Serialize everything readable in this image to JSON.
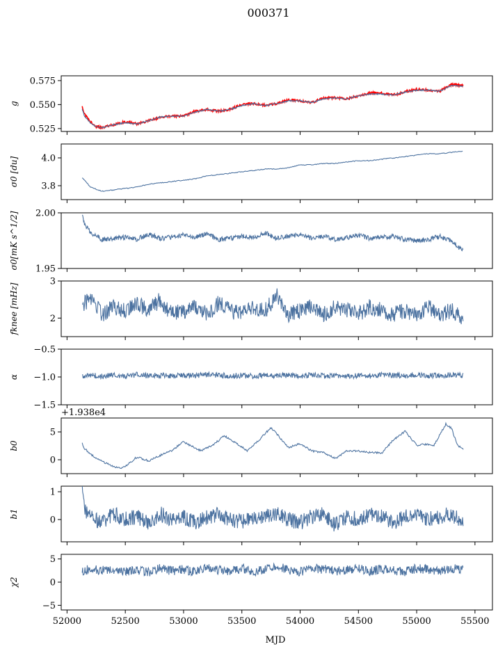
{
  "figure": {
    "title": "000371"
  },
  "chart_data": [
    {
      "type": "line",
      "ylabel": "g",
      "ylim": [
        0.522,
        0.58
      ],
      "yticks": [
        0.525,
        0.55,
        0.575
      ],
      "ytick_labels": [
        "0.525",
        "0.550",
        "0.575"
      ],
      "xlim": [
        51950,
        55650
      ],
      "grid": false,
      "series": [
        {
          "color": "#ff0000",
          "x": [
            52130,
            52150,
            52200,
            52250,
            52300,
            52400,
            52500,
            52600,
            52700,
            52800,
            52900,
            53000,
            53100,
            53200,
            53300,
            53400,
            53500,
            53600,
            53700,
            53800,
            53900,
            54000,
            54100,
            54200,
            54300,
            54400,
            54500,
            54600,
            54700,
            54800,
            54900,
            55000,
            55100,
            55200,
            55300,
            55400
          ],
          "y": [
            0.548,
            0.54,
            0.532,
            0.527,
            0.526,
            0.529,
            0.532,
            0.53,
            0.533,
            0.537,
            0.538,
            0.538,
            0.543,
            0.545,
            0.543,
            0.545,
            0.55,
            0.551,
            0.549,
            0.551,
            0.555,
            0.554,
            0.552,
            0.557,
            0.557,
            0.556,
            0.559,
            0.562,
            0.562,
            0.56,
            0.563,
            0.566,
            0.565,
            0.564,
            0.571,
            0.57
          ]
        },
        {
          "color": "#4c72a0",
          "x": [
            52130,
            52150,
            52200,
            52250,
            52300,
            52400,
            52500,
            52600,
            52700,
            52800,
            52900,
            53000,
            53100,
            53200,
            53300,
            53400,
            53500,
            53600,
            53700,
            53800,
            53900,
            54000,
            54100,
            54200,
            54300,
            54400,
            54500,
            54600,
            54700,
            54800,
            54900,
            55000,
            55100,
            55200,
            55300,
            55400
          ],
          "y": [
            0.545,
            0.538,
            0.531,
            0.527,
            0.526,
            0.529,
            0.531,
            0.53,
            0.533,
            0.537,
            0.538,
            0.538,
            0.542,
            0.545,
            0.543,
            0.545,
            0.549,
            0.551,
            0.549,
            0.551,
            0.554,
            0.554,
            0.552,
            0.556,
            0.557,
            0.556,
            0.559,
            0.561,
            0.561,
            0.56,
            0.563,
            0.565,
            0.565,
            0.564,
            0.57,
            0.569
          ]
        }
      ]
    },
    {
      "type": "line",
      "ylabel": "σ0 [du]",
      "ylim": [
        3.7,
        4.1
      ],
      "yticks": [
        3.8,
        4.0
      ],
      "ytick_labels": [
        "3.8",
        "4.0"
      ],
      "xlim": [
        51950,
        55650
      ],
      "grid": false,
      "series": [
        {
          "color": "#4c72a0",
          "x": [
            52130,
            52200,
            52300,
            52400,
            52500,
            52600,
            52700,
            52800,
            52900,
            53000,
            53100,
            53200,
            53300,
            53400,
            53500,
            53600,
            53700,
            53800,
            53900,
            54000,
            54100,
            54200,
            54300,
            54400,
            54500,
            54600,
            54700,
            54800,
            54900,
            55000,
            55100,
            55200,
            55300,
            55400
          ],
          "y": [
            3.86,
            3.79,
            3.76,
            3.77,
            3.78,
            3.79,
            3.81,
            3.82,
            3.83,
            3.84,
            3.85,
            3.87,
            3.88,
            3.89,
            3.9,
            3.91,
            3.92,
            3.92,
            3.93,
            3.95,
            3.95,
            3.96,
            3.96,
            3.97,
            3.98,
            3.98,
            3.99,
            4.0,
            4.01,
            4.02,
            4.03,
            4.03,
            4.04,
            4.05
          ]
        }
      ]
    },
    {
      "type": "line",
      "ylabel": "σ0[mK s^1/2]",
      "ylim": [
        1.95,
        2.0
      ],
      "yticks": [
        1.95,
        2.0
      ],
      "ytick_labels": [
        "1.95",
        "2.00"
      ],
      "xlim": [
        51950,
        55650
      ],
      "grid": false,
      "series": [
        {
          "color": "#4c72a0",
          "x": [
            52130,
            52150,
            52200,
            52250,
            52300,
            52400,
            52500,
            52600,
            52700,
            52800,
            52900,
            53000,
            53100,
            53200,
            53300,
            53400,
            53500,
            53600,
            53700,
            53800,
            53900,
            54000,
            54100,
            54200,
            54300,
            54400,
            54500,
            54600,
            54700,
            54800,
            54900,
            55000,
            55100,
            55200,
            55300,
            55400
          ],
          "y": [
            1.999,
            1.99,
            1.982,
            1.979,
            1.976,
            1.977,
            1.978,
            1.976,
            1.981,
            1.977,
            1.978,
            1.98,
            1.978,
            1.981,
            1.976,
            1.977,
            1.979,
            1.978,
            1.982,
            1.977,
            1.979,
            1.98,
            1.977,
            1.979,
            1.976,
            1.978,
            1.98,
            1.977,
            1.978,
            1.979,
            1.976,
            1.975,
            1.976,
            1.979,
            1.974,
            1.966
          ]
        }
      ]
    },
    {
      "type": "line",
      "ylabel": "fknee [mHz]",
      "ylim": [
        1.5,
        3.0
      ],
      "yticks": [
        2,
        3
      ],
      "ytick_labels": [
        "2",
        "3"
      ],
      "xlim": [
        51950,
        55650
      ],
      "grid": false,
      "series": [
        {
          "color": "#4c72a0",
          "x": [
            52130,
            52200,
            52300,
            52400,
            52500,
            52600,
            52700,
            52800,
            52900,
            53000,
            53100,
            53200,
            53300,
            53400,
            53500,
            53600,
            53700,
            53800,
            53900,
            54000,
            54100,
            54200,
            54300,
            54400,
            54500,
            54600,
            54700,
            54800,
            54900,
            55000,
            55100,
            55200,
            55300,
            55400
          ],
          "y": [
            2.3,
            2.6,
            2.1,
            2.3,
            2.2,
            2.4,
            2.2,
            2.5,
            2.1,
            2.2,
            2.3,
            2.1,
            2.4,
            2.2,
            2.1,
            2.3,
            2.2,
            2.6,
            2.1,
            2.2,
            2.3,
            2.1,
            2.3,
            2.2,
            2.1,
            2.3,
            2.2,
            2.1,
            2.2,
            2.1,
            2.3,
            2.1,
            2.2,
            2.0
          ]
        }
      ]
    },
    {
      "type": "line",
      "ylabel": "α",
      "ylim": [
        -1.5,
        -0.5
      ],
      "yticks": [
        -1.5,
        -1.0,
        -0.5
      ],
      "ytick_labels": [
        "−1.5",
        "−1.0",
        "−0.5"
      ],
      "xlim": [
        51950,
        55650
      ],
      "grid": false,
      "series": [
        {
          "color": "#4c72a0",
          "x": [
            52130,
            52200,
            52300,
            52400,
            52500,
            52600,
            52700,
            52800,
            52900,
            53000,
            53100,
            53200,
            53300,
            53400,
            53500,
            53600,
            53700,
            53800,
            53900,
            54000,
            54100,
            54200,
            54300,
            54400,
            54500,
            54600,
            54700,
            54800,
            54900,
            55000,
            55100,
            55200,
            55300,
            55400
          ],
          "y": [
            -0.98,
            -0.96,
            -0.99,
            -0.97,
            -0.98,
            -0.96,
            -0.98,
            -0.97,
            -0.99,
            -0.97,
            -0.98,
            -0.96,
            -0.97,
            -0.98,
            -0.97,
            -0.99,
            -0.96,
            -0.98,
            -0.97,
            -0.98,
            -0.96,
            -0.98,
            -0.97,
            -0.99,
            -0.97,
            -0.98,
            -0.96,
            -0.97,
            -0.98,
            -0.96,
            -0.97,
            -0.98,
            -0.96,
            -0.97
          ]
        }
      ]
    },
    {
      "type": "line",
      "ylabel": "b0",
      "ylim": [
        -2.5,
        7.5
      ],
      "offset_text": "+1.938e4",
      "yticks": [
        0,
        5
      ],
      "ytick_labels": [
        "0",
        "5"
      ],
      "xlim": [
        51950,
        55650
      ],
      "grid": false,
      "series": [
        {
          "color": "#4c72a0",
          "x": [
            52130,
            52150,
            52250,
            52350,
            52450,
            52500,
            52600,
            52700,
            52800,
            52900,
            53000,
            53050,
            53150,
            53250,
            53350,
            53450,
            53550,
            53650,
            53750,
            53800,
            53900,
            54000,
            54100,
            54200,
            54300,
            54400,
            54500,
            54600,
            54700,
            54800,
            54900,
            55000,
            55100,
            55150,
            55250,
            55300,
            55350,
            55400
          ],
          "y": [
            3.0,
            2.0,
            0.2,
            -0.8,
            -1.5,
            -1.2,
            0.5,
            -0.2,
            0.8,
            1.6,
            3.3,
            2.6,
            1.6,
            2.6,
            4.3,
            3.0,
            1.6,
            3.6,
            5.8,
            4.6,
            2.2,
            2.9,
            1.6,
            1.3,
            0.2,
            1.6,
            1.6,
            1.3,
            1.2,
            3.6,
            5.1,
            2.6,
            2.8,
            2.6,
            6.4,
            5.6,
            2.6,
            2.0
          ]
        }
      ]
    },
    {
      "type": "line",
      "ylabel": "b1",
      "ylim": [
        -0.8,
        1.2
      ],
      "yticks": [
        0,
        1
      ],
      "ytick_labels": [
        "0",
        "1"
      ],
      "xlim": [
        51950,
        55650
      ],
      "grid": false,
      "series": [
        {
          "color": "#4c72a0",
          "x": [
            52130,
            52150,
            52200,
            52300,
            52400,
            52500,
            52600,
            52700,
            52800,
            52900,
            53000,
            53100,
            53200,
            53300,
            53400,
            53500,
            53600,
            53700,
            53800,
            53900,
            54000,
            54100,
            54200,
            54300,
            54400,
            54500,
            54600,
            54700,
            54800,
            54900,
            55000,
            55100,
            55200,
            55300,
            55400
          ],
          "y": [
            1.1,
            0.3,
            0.1,
            -0.1,
            0.2,
            0.0,
            0.1,
            -0.1,
            0.2,
            0.0,
            0.1,
            -0.1,
            0.1,
            0.2,
            0.0,
            -0.1,
            0.1,
            0.1,
            0.2,
            0.0,
            -0.1,
            0.1,
            0.2,
            -0.2,
            0.1,
            0.0,
            0.2,
            0.1,
            -0.1,
            0.1,
            0.2,
            0.0,
            0.1,
            0.2,
            -0.1
          ]
        }
      ]
    },
    {
      "type": "line",
      "ylabel": "χ2",
      "ylim": [
        -6,
        6
      ],
      "yticks": [
        -5,
        0,
        5
      ],
      "ytick_labels": [
        "−5",
        "0",
        "5"
      ],
      "xlim": [
        51950,
        55650
      ],
      "grid": false,
      "series": [
        {
          "color": "#4c72a0",
          "x": [
            52130,
            52200,
            52300,
            52400,
            52500,
            52600,
            52700,
            52800,
            52900,
            53000,
            53100,
            53200,
            53300,
            53400,
            53500,
            53600,
            53700,
            53800,
            53900,
            54000,
            54100,
            54200,
            54300,
            54400,
            54500,
            54600,
            54700,
            54800,
            54900,
            55000,
            55100,
            55200,
            55300,
            55400
          ],
          "y": [
            2.2,
            3.0,
            2.5,
            2.8,
            2.2,
            2.6,
            2.1,
            3.0,
            2.4,
            2.8,
            2.2,
            3.1,
            2.6,
            2.4,
            3.0,
            2.2,
            2.8,
            3.4,
            2.6,
            2.2,
            3.0,
            2.8,
            2.4,
            2.6,
            3.0,
            2.3,
            2.9,
            2.5,
            2.2,
            3.0,
            2.7,
            2.4,
            3.0,
            2.6
          ]
        }
      ]
    }
  ],
  "xaxis": {
    "label": "MJD",
    "ticks": [
      52000,
      52500,
      53000,
      53500,
      54000,
      54500,
      55000,
      55500
    ],
    "tick_labels": [
      "52000",
      "52500",
      "53000",
      "53500",
      "54000",
      "54500",
      "55000",
      "55500"
    ]
  }
}
